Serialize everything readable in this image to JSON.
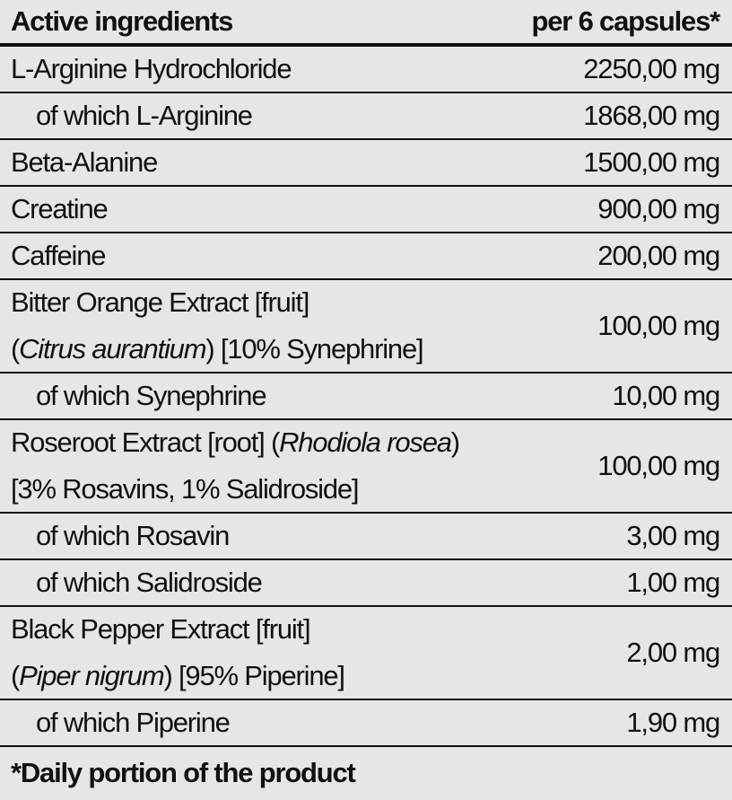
{
  "header": {
    "col1": "Active ingredients",
    "col2": "per 6 capsules*"
  },
  "rows": [
    {
      "name": "L-Arginine Hydrochloride",
      "value": "2250,00 mg"
    },
    {
      "name": "of which L-Arginine",
      "value": "1868,00 mg"
    },
    {
      "name": "Beta-Alanine",
      "value": "1500,00 mg"
    },
    {
      "name": "Creatine",
      "value": "900,00 mg"
    },
    {
      "name": "Caffeine",
      "value": "200,00 mg"
    },
    {
      "name_line1": "Bitter Orange Extract [fruit]",
      "latin": "Citrus aurantium",
      "name_line2_suffix": " [10% Synephrine]",
      "value": "100,00 mg"
    },
    {
      "name": "of which Synephrine",
      "value": "10,00 mg"
    },
    {
      "name_line1_prefix": "Roseroot Extract [root] ",
      "latin": "Rhodiola rosea",
      "name_line2": "[3% Rosavins, 1% Salidroside]",
      "value": "100,00 mg"
    },
    {
      "name": "of which Rosavin",
      "value": "3,00 mg"
    },
    {
      "name": "of which Salidroside",
      "value": "1,00 mg"
    },
    {
      "name_line1": "Black Pepper Extract [fruit]",
      "latin": "Piper nigrum",
      "name_line2_suffix": " [95% Piperine]",
      "value": "2,00 mg"
    },
    {
      "name": "of which Piperine",
      "value": "1,90 mg"
    }
  ],
  "footnote": "*Daily portion of the product"
}
